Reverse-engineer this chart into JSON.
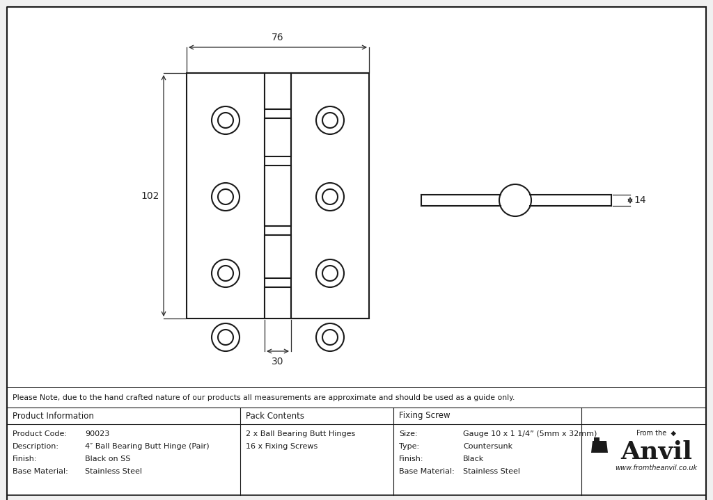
{
  "bg_color": "#f0f0f0",
  "drawing_bg": "#ffffff",
  "line_color": "#1a1a1a",
  "dim_color": "#2a2a2a",
  "note": "Please Note, due to the hand crafted nature of our products all measurements are approximate and should be used as a guide only.",
  "product_info": {
    "header": "Product Information",
    "rows": [
      [
        "Product Code:",
        "90023"
      ],
      [
        "Description:",
        "4″ Ball Bearing Butt Hinge (Pair)"
      ],
      [
        "Finish:",
        "Black on SS"
      ],
      [
        "Base Material:",
        "Stainless Steel"
      ]
    ]
  },
  "pack_contents": {
    "header": "Pack Contents",
    "rows": [
      "2 x Ball Bearing Butt Hinges",
      "16 x Fixing Screws"
    ]
  },
  "fixing_screw": {
    "header": "Fixing Screw",
    "rows": [
      [
        "Size:",
        "Gauge 10 x 1 1/4” (5mm x 32mm)"
      ],
      [
        "Type:",
        "Countersunk"
      ],
      [
        "Finish:",
        "Black"
      ],
      [
        "Base Material:",
        "Stainless Steel"
      ]
    ]
  },
  "dim_76": "76",
  "dim_102": "102",
  "dim_30": "30",
  "dim_14": "14",
  "anvil_url": "www.fromtheanvil.co.uk"
}
